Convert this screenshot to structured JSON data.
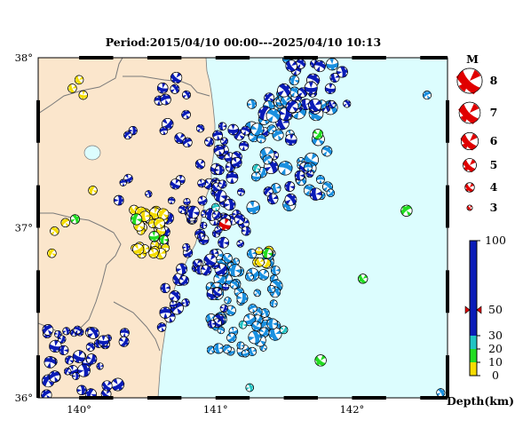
{
  "title": "Period:2015/04/10 00:00---2025/04/10 10:13",
  "axes": {
    "lat_ticks": [
      {
        "value": 38,
        "label": "38°"
      },
      {
        "value": 37,
        "label": "37°"
      },
      {
        "value": 36,
        "label": "36°"
      }
    ],
    "lon_ticks": [
      {
        "value": 140,
        "label": "140°"
      },
      {
        "value": 141,
        "label": "141°"
      },
      {
        "value": 142,
        "label": "142°"
      }
    ],
    "lat_range": [
      36,
      38
    ],
    "lon_range": [
      139.7,
      142.7
    ]
  },
  "colors": {
    "land": "#fbe6cc",
    "sea": "#dcfdfe",
    "boundary": "#7a7a7a",
    "lake": "#dcfdfe",
    "shallow_0_10": "#f5dc00",
    "depth_10_20": "#22dd22",
    "depth_20_30": "#22c4c4",
    "depth_30_50": "#1a90e0",
    "depth_50_100": "#0a1cb8",
    "highlight": "#e00000"
  },
  "magnitude_legend": {
    "title": "M",
    "entries": [
      {
        "label": "8",
        "m": 8
      },
      {
        "label": "7",
        "m": 7
      },
      {
        "label": "6",
        "m": 6
      },
      {
        "label": "5",
        "m": 5
      },
      {
        "label": "4",
        "m": 4
      },
      {
        "label": "3",
        "m": 3
      }
    ]
  },
  "depth_scale": {
    "title": "Depth(km)",
    "ticks": [
      {
        "label": "100",
        "value": 100
      },
      {
        "label": "50",
        "value": 50
      },
      {
        "label": "30",
        "value": 30
      },
      {
        "label": "20",
        "value": 20
      },
      {
        "label": "10",
        "value": 10
      },
      {
        "label": "0",
        "value": 0
      }
    ],
    "marker_value": 50
  },
  "highlight_event": {
    "lon": 141.07,
    "lat": 37.02,
    "m": 5.8,
    "depth": 50
  },
  "event_count_note": ""
}
